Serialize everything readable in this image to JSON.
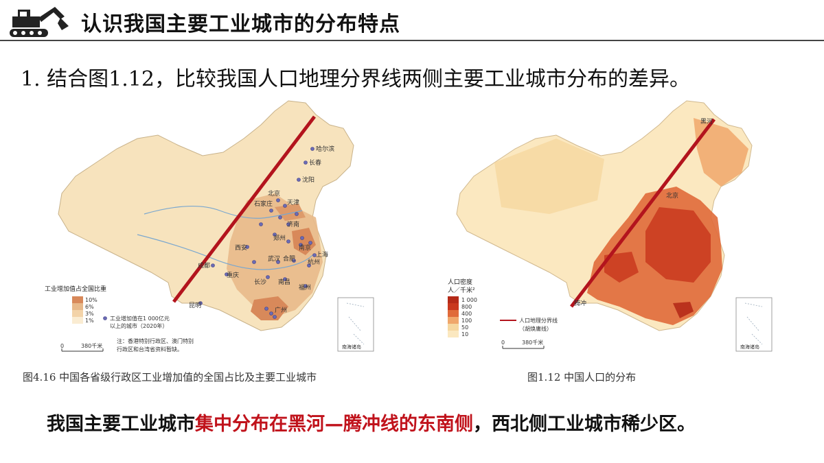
{
  "header": {
    "title": "认识我国主要工业城市的分布特点",
    "logo_icon": "excavator-icon"
  },
  "question": {
    "text": "1. 结合图1.12，比较我国人口地理分界线两侧主要工业城市分布的差异。"
  },
  "figure_left": {
    "caption": "图4.16 中国各省级行政区工业增加值的全国占比及主要工业城市",
    "cities": [
      "哈尔滨",
      "长春",
      "沈阳",
      "北京",
      "天津",
      "石家庄",
      "济南",
      "郑州",
      "西安",
      "南京",
      "上海",
      "武汉",
      "合肥",
      "杭州",
      "成都",
      "重庆",
      "长沙",
      "南昌",
      "福州",
      "昆明",
      "广州"
    ],
    "legend": {
      "title": "工业增加值占全国比重",
      "items": [
        "10%",
        "6%",
        "3%",
        "1%"
      ],
      "dot_label_line1": "工业增加值在1 000亿元",
      "dot_label_line2": "以上的城市（2020年）",
      "note_line1": "注：香港特别行政区、澳门特别",
      "note_line2": "行政区和台湾省资料暂缺。",
      "scale_zero": "0",
      "scale_label": "380千米"
    },
    "inset_label": "南海诸岛"
  },
  "figure_right": {
    "caption": "图1.12 中国人口的分布",
    "labels": {
      "heihe": "黑河",
      "beijing": "北京",
      "tengchong": "腾冲"
    },
    "legend": {
      "title_line1": "人口密度",
      "title_line2": "人／千米²",
      "items": [
        "1 000",
        "800",
        "400",
        "100",
        "50",
        "10"
      ],
      "line_label_line1": "人口地理分界线",
      "line_label_line2": "（胡焕庸线）",
      "scale_zero": "0",
      "scale_label": "380千米"
    },
    "inset_label": "南海诸岛"
  },
  "conclusion": {
    "part1": "我国主要工业城市",
    "part2_highlight": "集中分布在黑河—腾冲线的东南侧",
    "part3": "，西北侧工业城市稀少区。"
  },
  "colors": {
    "highlight_red": "#c0121b",
    "divider_line": "#b3141d"
  }
}
